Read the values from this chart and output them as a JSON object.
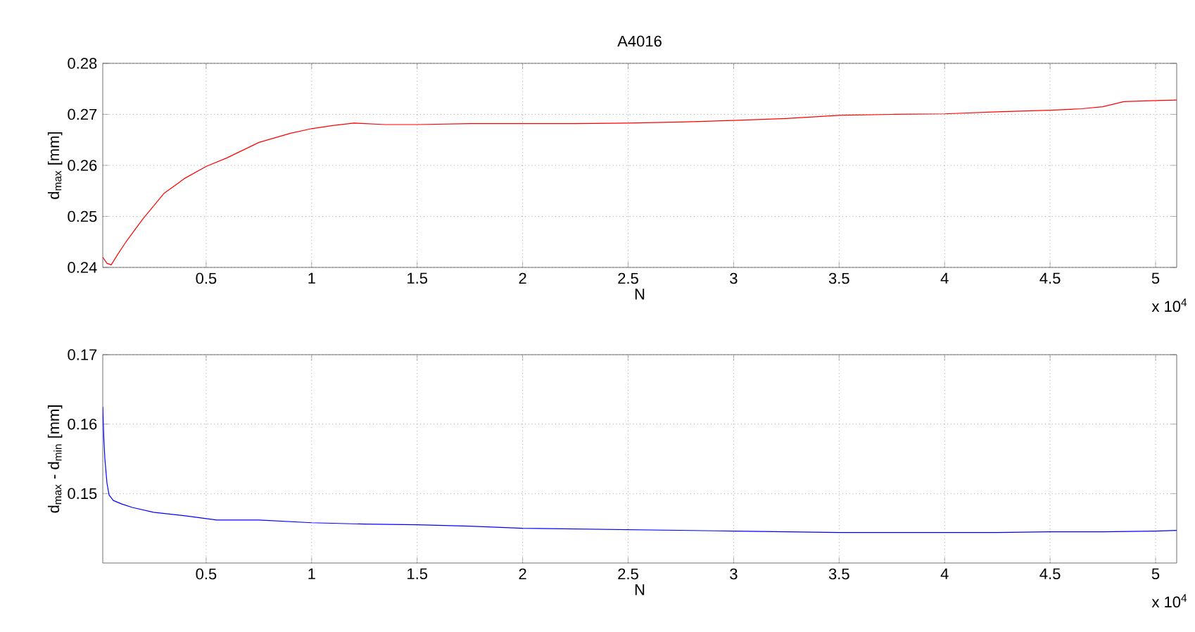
{
  "chart_data": [
    {
      "type": "line",
      "title": "A4016",
      "xlabel": "N",
      "ylabel": "d$_{max}$ [mm]",
      "xlim": [
        0.01,
        5.1
      ],
      "ylim": [
        0.24,
        0.28
      ],
      "xticks": [
        0.5,
        1,
        1.5,
        2,
        2.5,
        3,
        3.5,
        4,
        4.5,
        5
      ],
      "yticks": [
        0.24,
        0.25,
        0.26,
        0.27,
        0.28
      ],
      "grid": true,
      "annotations": [
        "x 10$^{4}$"
      ],
      "x": [
        0.01,
        0.03,
        0.05,
        0.08,
        0.12,
        0.2,
        0.3,
        0.4,
        0.5,
        0.6,
        0.75,
        0.9,
        1.0,
        1.1,
        1.2,
        1.35,
        1.5,
        1.75,
        2.0,
        2.25,
        2.5,
        2.75,
        3.0,
        3.25,
        3.5,
        3.75,
        4.0,
        4.25,
        4.5,
        4.65,
        4.75,
        4.85,
        5.0,
        5.1
      ],
      "series": [
        {
          "color": "#ff0000",
          "values": [
            0.242,
            0.2408,
            0.2405,
            0.2425,
            0.245,
            0.2495,
            0.2545,
            0.2575,
            0.2598,
            0.2615,
            0.2645,
            0.2663,
            0.2672,
            0.2678,
            0.2683,
            0.268,
            0.268,
            0.2682,
            0.2682,
            0.2682,
            0.2683,
            0.2685,
            0.2688,
            0.2692,
            0.2698,
            0.27,
            0.2701,
            0.2705,
            0.2708,
            0.2711,
            0.2715,
            0.2725,
            0.2727,
            0.2728
          ]
        }
      ]
    },
    {
      "type": "line",
      "xlabel": "N",
      "ylabel": "d$_{max}$ - d$_{min}$ [mm]",
      "xlim": [
        0.01,
        5.1
      ],
      "ylim": [
        0.14,
        0.17
      ],
      "xticks": [
        0.5,
        1,
        1.5,
        2,
        2.5,
        3,
        3.5,
        4,
        4.5,
        5
      ],
      "yticks": [
        0.15,
        0.16,
        0.17
      ],
      "grid": true,
      "annotations": [
        "x 10$^{4}$"
      ],
      "x": [
        0.01,
        0.015,
        0.02,
        0.03,
        0.04,
        0.06,
        0.1,
        0.15,
        0.25,
        0.4,
        0.55,
        0.75,
        1.0,
        1.25,
        1.5,
        1.75,
        2.0,
        2.25,
        2.5,
        2.75,
        3.0,
        3.25,
        3.5,
        3.75,
        4.0,
        4.25,
        4.5,
        4.75,
        5.0,
        5.1
      ],
      "series": [
        {
          "color": "#0000ff",
          "values": [
            0.1625,
            0.158,
            0.155,
            0.1515,
            0.1498,
            0.149,
            0.1485,
            0.148,
            0.1473,
            0.1468,
            0.1462,
            0.1462,
            0.1458,
            0.1456,
            0.1455,
            0.1453,
            0.145,
            0.1449,
            0.1448,
            0.1447,
            0.1446,
            0.1445,
            0.1444,
            0.1444,
            0.1444,
            0.1444,
            0.1445,
            0.1445,
            0.1446,
            0.1447
          ]
        }
      ]
    }
  ]
}
